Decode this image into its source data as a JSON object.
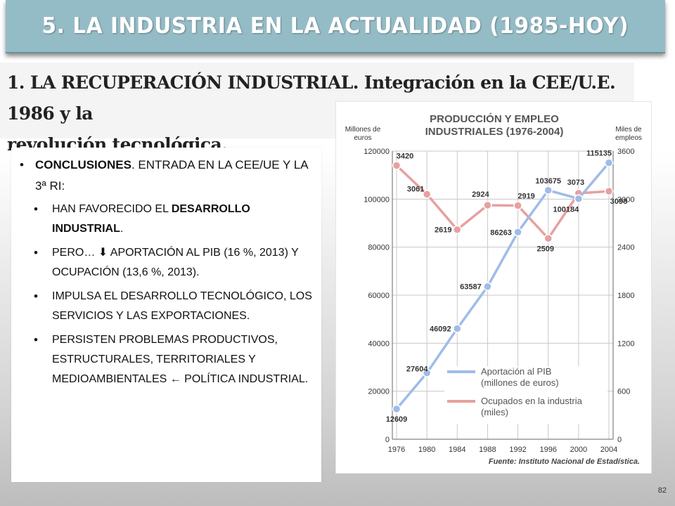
{
  "title": "5. LA INDUSTRIA EN LA ACTUALIDAD (1985-HOY)",
  "subtitle_line1": "1. LA RECUPERACIÓN INDUSTRIAL. Integración en la CEE/U.E. 1986 y la",
  "subtitle_line2": "revolución tecnológica.",
  "content": {
    "bullet_bold": "CONCLUSIONES",
    "bullet_rest": ". ENTRADA EN LA CEE/UE Y LA 3ª RI:",
    "items": [
      {
        "pre": "HAN FAVORECIDO EL ",
        "bold": "DESARROLLO INDUSTRIAL",
        "post": "."
      },
      {
        "text": "PERO… ",
        "arrow": "⬇",
        "post": " APORTACIÓN AL PIB (16 %, 2013) Y OCUPACIÓN (13,6 %, 2013)."
      },
      {
        "text": "IMPULSA EL DESARROLLO TECNOLÓGICO, LOS SERVICIOS Y LAS EXPORTACIONES."
      },
      {
        "text": "PERSISTEN PROBLEMAS PRODUCTIVOS, ESTRUCTURALES, TERRITORIALES Y MEDIOAMBIENTALES ← POLÍTICA INDUSTRIAL."
      }
    ]
  },
  "slide_number": "82",
  "chart_data": {
    "type": "line",
    "title": "PRODUCCIÓN Y EMPLEO INDUSTRIALES (1976-2004)",
    "ylabel_left": "Millones de euros",
    "ylabel_right": "Miles de empleos",
    "x": [
      "1976",
      "1980",
      "1984",
      "1988",
      "1992",
      "1996",
      "2000",
      "2004"
    ],
    "ylim_left": [
      0,
      120000
    ],
    "yticks_left": [
      0,
      20000,
      40000,
      60000,
      80000,
      100000,
      120000
    ],
    "ylim_right": [
      0,
      3600
    ],
    "yticks_right": [
      0,
      600,
      1200,
      1800,
      2400,
      3000,
      3600
    ],
    "series": [
      {
        "name": "Aportación al PIB (millones de euros)",
        "axis": "left",
        "color": "#9fbce8",
        "values": [
          12609,
          27604,
          46092,
          63587,
          86263,
          103675,
          100184,
          115135
        ]
      },
      {
        "name": "Ocupados en la industria (miles)",
        "axis": "right",
        "color": "#e8a0a0",
        "values": [
          3420,
          3061,
          2619,
          2924,
          2919,
          2509,
          3073,
          3098
        ]
      }
    ],
    "legend_position": "bottom-right",
    "grid": true,
    "source": "Fuente: Instituto Nacional de Estadística."
  }
}
